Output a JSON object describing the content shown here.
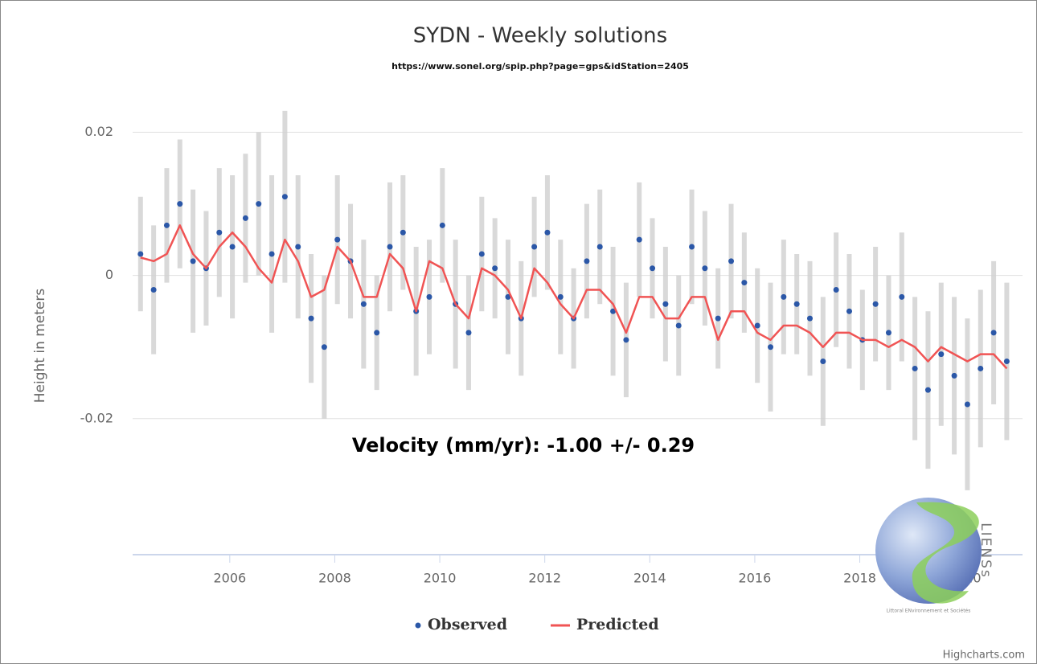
{
  "chart_data": {
    "type": "scatter",
    "title": "SYDN - Weekly solutions",
    "subtitle": "https://www.sonel.org/spip.php?page=gps&idStation=2405",
    "y_label": "Height in meters",
    "annotation": "Velocity (mm/yr):  -1.00 +/- 0.29",
    "credits": "Highcharts.com",
    "logo_text": "LIENSs",
    "logo_caption": "Littoral ENvironnement et Sociétés",
    "xlim": [
      2004.15,
      2021.1
    ],
    "xticks": [
      2006,
      2008,
      2010,
      2012,
      2014,
      2016,
      2018,
      2020
    ],
    "ylim": [
      -0.039,
      0.025
    ],
    "yticks": [
      -0.02,
      0,
      0.02
    ],
    "grid": true,
    "legend": "bottom",
    "x": [
      2004.3,
      2004.55,
      2004.8,
      2005.05,
      2005.3,
      2005.55,
      2005.8,
      2006.05,
      2006.3,
      2006.55,
      2006.8,
      2007.05,
      2007.3,
      2007.55,
      2007.8,
      2008.05,
      2008.3,
      2008.55,
      2008.8,
      2009.05,
      2009.3,
      2009.55,
      2009.8,
      2010.05,
      2010.3,
      2010.55,
      2010.8,
      2011.05,
      2011.3,
      2011.55,
      2011.8,
      2012.05,
      2012.3,
      2012.55,
      2012.8,
      2013.05,
      2013.3,
      2013.55,
      2013.8,
      2014.05,
      2014.3,
      2014.55,
      2014.8,
      2015.05,
      2015.3,
      2015.55,
      2015.8,
      2016.05,
      2016.3,
      2016.55,
      2016.8,
      2017.05,
      2017.3,
      2017.55,
      2017.8,
      2018.05,
      2018.3,
      2018.55,
      2018.8,
      2019.05,
      2019.3,
      2019.55,
      2019.8,
      2020.05,
      2020.3,
      2020.55,
      2020.8
    ],
    "series": [
      {
        "name": "Observed",
        "color": "#2b57a7",
        "type": "scatter",
        "error_color": "#d0d0d0",
        "values": [
          0.003,
          -0.002,
          0.007,
          0.01,
          0.002,
          0.001,
          0.006,
          0.004,
          0.008,
          0.01,
          0.003,
          0.011,
          0.004,
          -0.006,
          -0.01,
          0.005,
          0.002,
          -0.004,
          -0.008,
          0.004,
          0.006,
          -0.005,
          -0.003,
          0.007,
          -0.004,
          -0.008,
          0.003,
          0.001,
          -0.003,
          -0.006,
          0.004,
          0.006,
          -0.003,
          -0.006,
          0.002,
          0.004,
          -0.005,
          -0.009,
          0.005,
          0.001,
          -0.004,
          -0.007,
          0.004,
          0.001,
          -0.006,
          0.002,
          -0.001,
          -0.007,
          -0.01,
          -0.003,
          -0.004,
          -0.006,
          -0.012,
          -0.002,
          -0.005,
          -0.009,
          -0.004,
          -0.008,
          -0.003,
          -0.013,
          -0.016,
          -0.011,
          -0.014,
          -0.018,
          -0.013,
          -0.008,
          -0.012
        ],
        "errors": [
          0.008,
          0.009,
          0.008,
          0.009,
          0.01,
          0.008,
          0.009,
          0.01,
          0.009,
          0.01,
          0.011,
          0.012,
          0.01,
          0.009,
          0.01,
          0.009,
          0.008,
          0.009,
          0.008,
          0.009,
          0.008,
          0.009,
          0.008,
          0.008,
          0.009,
          0.008,
          0.008,
          0.007,
          0.008,
          0.008,
          0.007,
          0.008,
          0.008,
          0.007,
          0.008,
          0.008,
          0.009,
          0.008,
          0.008,
          0.007,
          0.008,
          0.007,
          0.008,
          0.008,
          0.007,
          0.008,
          0.007,
          0.008,
          0.009,
          0.008,
          0.007,
          0.008,
          0.009,
          0.008,
          0.008,
          0.007,
          0.008,
          0.008,
          0.009,
          0.01,
          0.011,
          0.01,
          0.011,
          0.012,
          0.011,
          0.01,
          0.011
        ]
      },
      {
        "name": "Predicted",
        "color": "#f05454",
        "type": "line",
        "values": [
          0.0025,
          0.002,
          0.003,
          0.007,
          0.003,
          0.001,
          0.004,
          0.006,
          0.004,
          0.001,
          -0.001,
          0.005,
          0.002,
          -0.003,
          -0.002,
          0.004,
          0.002,
          -0.003,
          -0.003,
          0.003,
          0.001,
          -0.005,
          0.002,
          0.001,
          -0.004,
          -0.006,
          0.001,
          0.0,
          -0.002,
          -0.006,
          0.001,
          -0.001,
          -0.004,
          -0.006,
          -0.002,
          -0.002,
          -0.004,
          -0.008,
          -0.003,
          -0.003,
          -0.006,
          -0.006,
          -0.003,
          -0.003,
          -0.009,
          -0.005,
          -0.005,
          -0.008,
          -0.009,
          -0.007,
          -0.007,
          -0.008,
          -0.01,
          -0.008,
          -0.008,
          -0.009,
          -0.009,
          -0.01,
          -0.009,
          -0.01,
          -0.012,
          -0.01,
          -0.011,
          -0.012,
          -0.011,
          -0.011,
          -0.013
        ]
      }
    ]
  }
}
